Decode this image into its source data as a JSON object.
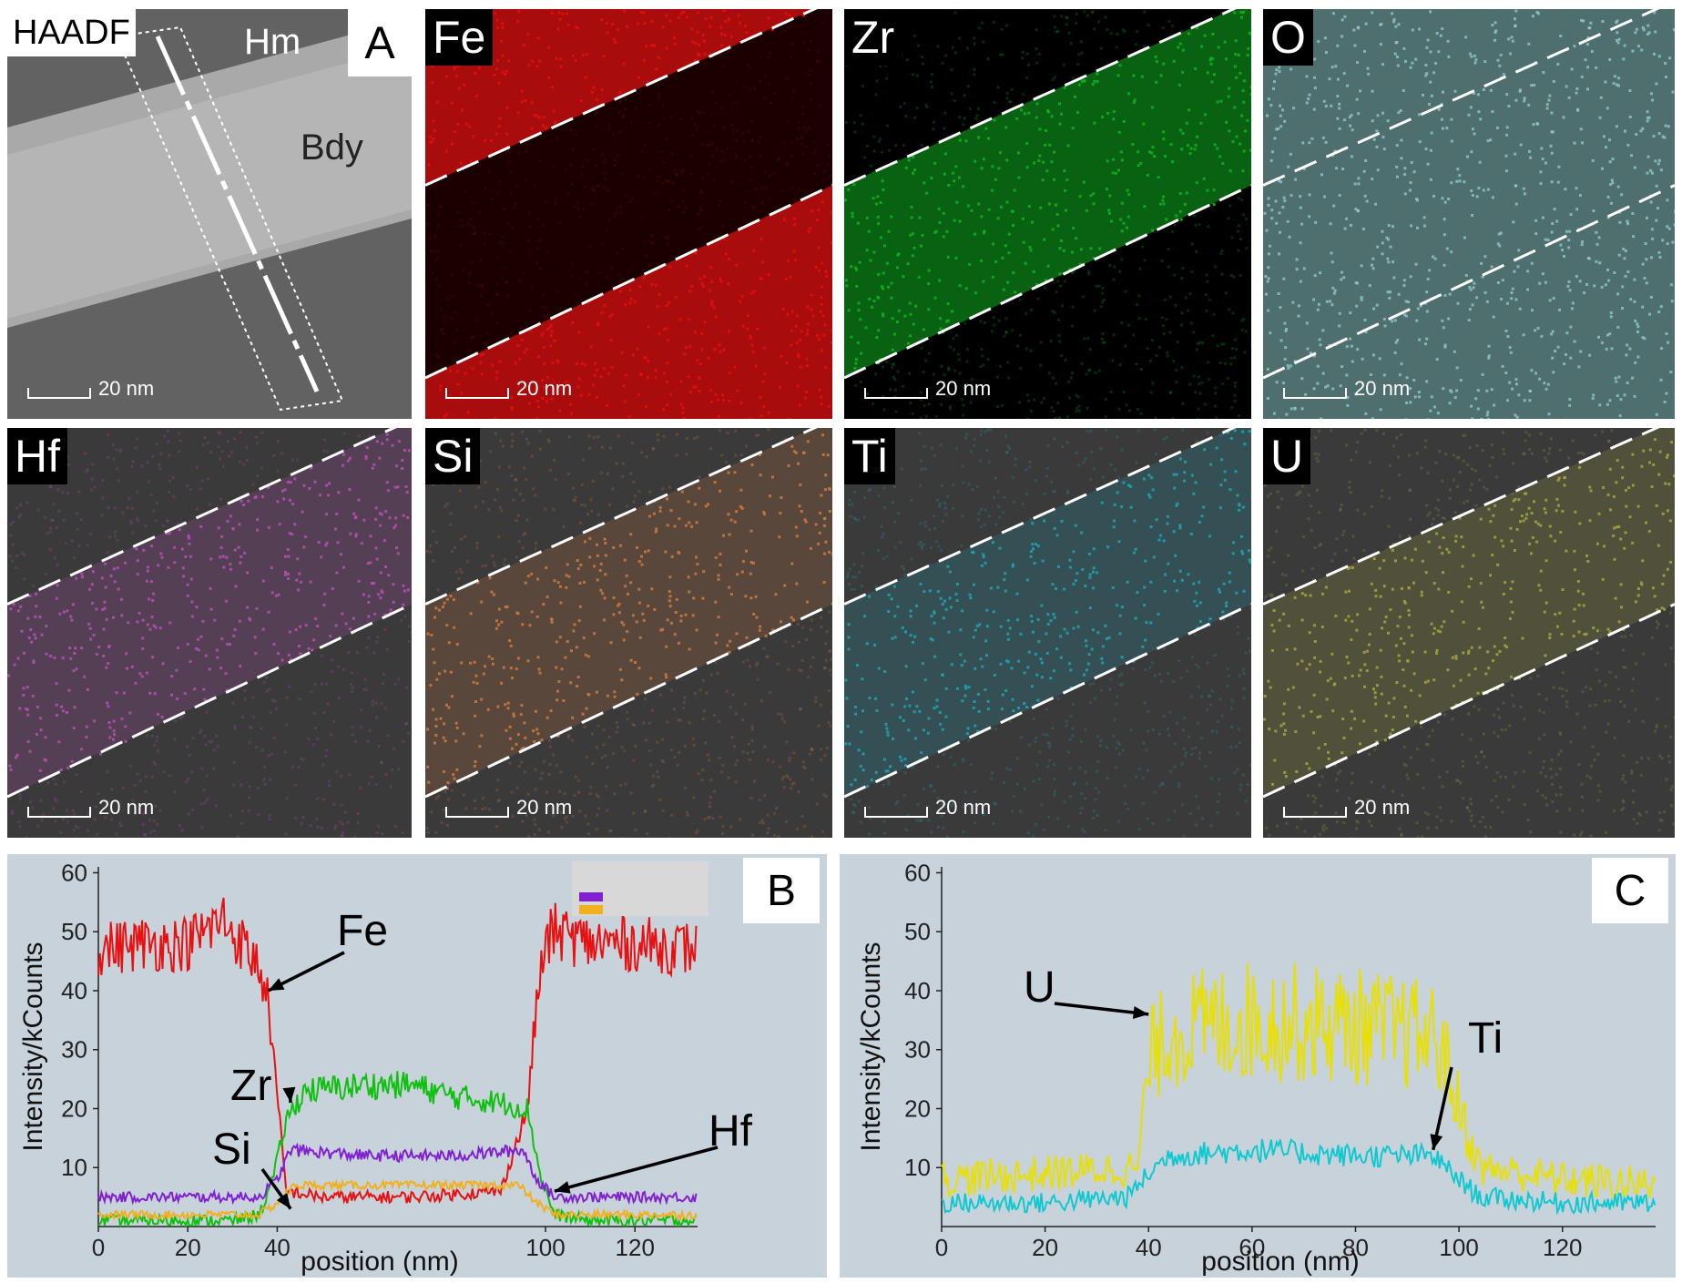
{
  "figure": {
    "scale_bar": "20 nm",
    "panel_a": {
      "tag": "HAADF",
      "letter": "A",
      "labels": {
        "hm": "Hm",
        "bdy": "Bdy"
      }
    },
    "maps": [
      {
        "element": "Fe",
        "color": "#e01010",
        "band": "dark"
      },
      {
        "element": "Zr",
        "color": "#10b020",
        "band": "bright"
      },
      {
        "element": "O",
        "color": "#8fc9c9",
        "band": "uniform"
      },
      {
        "element": "Hf",
        "color": "#b050b0",
        "band": "bright"
      },
      {
        "element": "Si",
        "color": "#c87840",
        "band": "bright"
      },
      {
        "element": "Ti",
        "color": "#20a0b0",
        "band": "bright"
      },
      {
        "element": "U",
        "color": "#a0a040",
        "band": "bright"
      }
    ]
  },
  "chart_data": [
    {
      "panel": "B",
      "type": "line",
      "xlabel": "position (nm)",
      "ylabel": "Intensity/kCounts",
      "xlim": [
        0,
        134
      ],
      "ylim": [
        0,
        61
      ],
      "xticks": [
        0,
        20,
        40,
        100,
        120
      ],
      "yticks": [
        10,
        20,
        30,
        40,
        50,
        60
      ],
      "series": [
        {
          "name": "Fe",
          "color": "#e81010",
          "x": [
            0,
            10,
            20,
            28,
            33,
            36,
            38,
            40,
            42,
            50,
            70,
            90,
            96,
            98,
            100,
            102,
            110,
            120,
            134
          ],
          "y": [
            47,
            48,
            48,
            52,
            47,
            44,
            38,
            22,
            6,
            5,
            5,
            6,
            20,
            38,
            48,
            50,
            48,
            48,
            47
          ]
        },
        {
          "name": "Zr",
          "color": "#10c010",
          "x": [
            0,
            30,
            36,
            39,
            42,
            46,
            60,
            70,
            80,
            90,
            96,
            99,
            102,
            110,
            134
          ],
          "y": [
            1,
            1,
            2,
            8,
            18,
            23,
            24,
            24,
            22,
            21,
            20,
            8,
            2,
            1,
            1
          ]
        },
        {
          "name": "Hf",
          "color": "#8020d0",
          "x": [
            0,
            20,
            36,
            40,
            43,
            60,
            80,
            95,
            98,
            102,
            120,
            134
          ],
          "y": [
            5,
            5,
            5,
            8,
            13,
            12,
            12,
            13,
            8,
            5,
            5,
            5
          ]
        },
        {
          "name": "Si",
          "color": "#f0b020",
          "x": [
            0,
            36,
            40,
            44,
            70,
            94,
            98,
            102,
            134
          ],
          "y": [
            2,
            2,
            4,
            7,
            7,
            7,
            4,
            2,
            2
          ]
        }
      ],
      "annotations": [
        {
          "text": "Fe",
          "x": 38,
          "y": 40
        },
        {
          "text": "Zr",
          "x": 43,
          "y": 21
        },
        {
          "text": "Si",
          "x": 43,
          "y": 3
        },
        {
          "text": "Hf",
          "x": 102,
          "y": 6
        }
      ],
      "legend": "top-right"
    },
    {
      "panel": "C",
      "type": "line",
      "xlabel": "position (nm)",
      "ylabel": "Intensity/kCounts",
      "xlim": [
        0,
        138
      ],
      "ylim": [
        0,
        61
      ],
      "xticks": [
        0,
        20,
        40,
        60,
        80,
        100,
        120
      ],
      "yticks": [
        10,
        20,
        30,
        40,
        50,
        60
      ],
      "series": [
        {
          "name": "U",
          "color": "#e8e000",
          "x": [
            0,
            20,
            38,
            40,
            44,
            60,
            80,
            96,
            100,
            104,
            120,
            138
          ],
          "y": [
            8,
            9,
            10,
            28,
            33,
            35,
            34,
            32,
            20,
            10,
            8,
            7
          ]
        },
        {
          "name": "Ti",
          "color": "#10c8d0",
          "x": [
            0,
            20,
            36,
            40,
            44,
            60,
            80,
            95,
            100,
            104,
            120,
            138
          ],
          "y": [
            4,
            4,
            5,
            9,
            12,
            13,
            12,
            12,
            8,
            5,
            4,
            4
          ]
        }
      ],
      "annotations": [
        {
          "text": "U",
          "x": 40,
          "y": 36
        },
        {
          "text": "Ti",
          "x": 95,
          "y": 13
        }
      ]
    }
  ]
}
